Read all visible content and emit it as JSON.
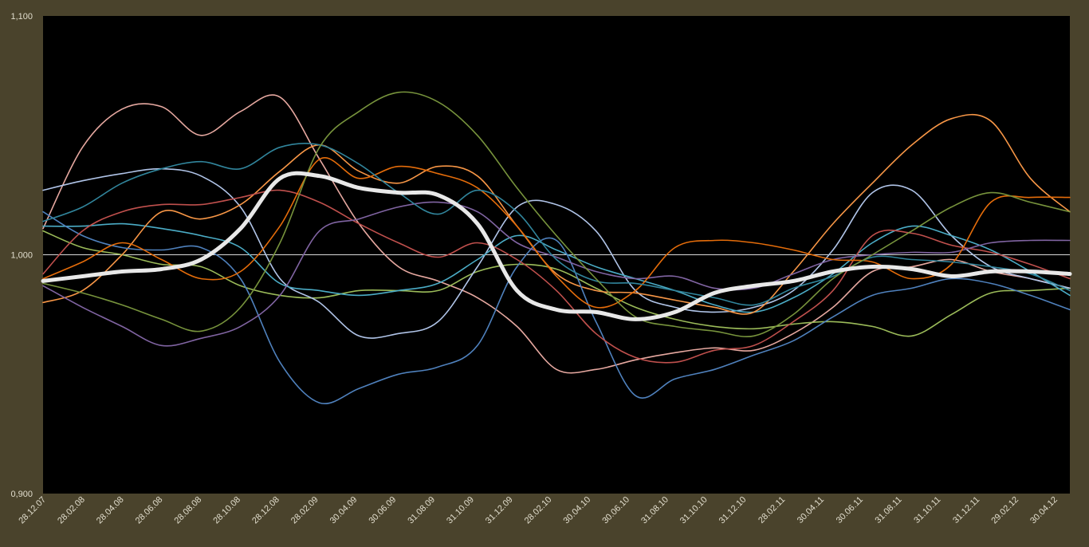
{
  "chart_data": {
    "type": "line",
    "title": "",
    "xlabel": "",
    "ylabel": "",
    "ylim": [
      0.9,
      1.1
    ],
    "yticks": [
      "1,100",
      "1,000",
      "0,900"
    ],
    "ytick_values": [
      1.1,
      1.0,
      0.9
    ],
    "x_start": "28.12.07",
    "x_end": "31.05.12",
    "categories": [
      "28.12.07",
      "28.02.08",
      "28.04.08",
      "28.06.08",
      "28.08.08",
      "28.10.08",
      "28.12.08",
      "28.02.09",
      "30.04.09",
      "30.06.09",
      "31.08.09",
      "31.10.09",
      "31.12.09",
      "28.02.10",
      "30.04.10",
      "30.06.10",
      "31.08.10",
      "31.10.10",
      "31.12.10",
      "28.02.11",
      "30.04.11",
      "30.06.11",
      "31.08.11",
      "31.10.11",
      "31.12.11",
      "29.02.12",
      "30.04.12"
    ],
    "reference_line": 1.0,
    "grid": false,
    "legend": "none",
    "series": [
      {
        "color": "#e8e8e8",
        "highlight": true,
        "values": [
          0.989,
          0.991,
          0.993,
          0.994,
          0.998,
          1.011,
          1.032,
          1.033,
          1.028,
          1.026,
          1.025,
          1.013,
          0.985,
          0.977,
          0.976,
          0.973,
          0.976,
          0.984,
          0.987,
          0.989,
          0.993,
          0.995,
          0.994,
          0.991,
          0.993,
          0.993,
          0.992
        ]
      },
      {
        "color": "#e6a8a0",
        "values": [
          1.011,
          1.045,
          1.061,
          1.062,
          1.05,
          1.06,
          1.066,
          1.04,
          1.013,
          0.995,
          0.989,
          0.982,
          0.97,
          0.952,
          0.952,
          0.956,
          0.959,
          0.961,
          0.96,
          0.967,
          0.978,
          0.993,
          0.995,
          0.998,
          0.993,
          0.99,
          0.986
        ]
      },
      {
        "color": "#9bbb59",
        "values": [
          1.01,
          1.003,
          1.0,
          0.996,
          0.995,
          0.987,
          0.983,
          0.982,
          0.985,
          0.985,
          0.985,
          0.993,
          0.996,
          0.994,
          0.986,
          0.978,
          0.973,
          0.97,
          0.969,
          0.971,
          0.972,
          0.97,
          0.966,
          0.975,
          0.984,
          0.985,
          0.986
        ]
      },
      {
        "color": "#b0c4e8",
        "values": [
          1.027,
          1.031,
          1.034,
          1.036,
          1.033,
          1.02,
          0.99,
          0.98,
          0.966,
          0.967,
          0.972,
          0.995,
          1.02,
          1.021,
          1.01,
          0.985,
          0.978,
          0.976,
          0.978,
          0.985,
          1.002,
          1.026,
          1.027,
          1.008,
          0.995,
          0.99,
          0.986
        ]
      },
      {
        "color": "#4bacc6",
        "values": [
          1.012,
          1.012,
          1.013,
          1.011,
          1.008,
          1.003,
          0.988,
          0.985,
          0.983,
          0.985,
          0.988,
          0.998,
          1.008,
          1.002,
          0.995,
          0.99,
          0.985,
          0.979,
          0.976,
          0.982,
          0.992,
          1.005,
          1.012,
          1.008,
          1.002,
          0.993,
          0.983
        ]
      },
      {
        "color": "#f79646",
        "values": [
          0.98,
          0.985,
          1.0,
          1.018,
          1.015,
          1.021,
          1.035,
          1.046,
          1.035,
          1.03,
          1.037,
          1.033,
          1.012,
          0.992,
          0.985,
          0.984,
          0.981,
          0.978,
          0.976,
          0.993,
          1.013,
          1.03,
          1.046,
          1.057,
          1.056,
          1.032,
          1.018
        ]
      },
      {
        "color": "#4f81bd",
        "values": [
          1.018,
          1.008,
          1.003,
          1.002,
          1.003,
          0.99,
          0.955,
          0.938,
          0.944,
          0.95,
          0.953,
          0.962,
          0.995,
          1.006,
          0.972,
          0.941,
          0.948,
          0.952,
          0.958,
          0.964,
          0.974,
          0.983,
          0.986,
          0.99,
          0.988,
          0.983,
          0.977
        ]
      },
      {
        "color": "#c0504d",
        "values": [
          0.992,
          1.01,
          1.018,
          1.021,
          1.021,
          1.024,
          1.027,
          1.022,
          1.013,
          1.005,
          0.999,
          1.005,
          0.998,
          0.985,
          0.967,
          0.957,
          0.955,
          0.96,
          0.962,
          0.972,
          0.985,
          1.008,
          1.009,
          1.004,
          1.001,
          0.996,
          0.99
        ]
      },
      {
        "color": "#8064a2",
        "values": [
          0.987,
          0.978,
          0.97,
          0.962,
          0.965,
          0.97,
          0.983,
          1.01,
          1.015,
          1.02,
          1.022,
          1.018,
          1.005,
          0.999,
          0.993,
          0.99,
          0.991,
          0.986,
          0.986,
          0.992,
          0.998,
          1.0,
          1.001,
          1.001,
          1.005,
          1.006,
          1.006
        ]
      },
      {
        "color": "#e46c0a",
        "values": [
          0.99,
          0.997,
          1.005,
          0.998,
          0.99,
          0.993,
          1.012,
          1.04,
          1.032,
          1.037,
          1.034,
          1.028,
          1.012,
          0.991,
          0.978,
          0.985,
          1.003,
          1.006,
          1.005,
          1.002,
          0.998,
          0.997,
          0.99,
          0.996,
          1.022,
          1.024,
          1.024
        ]
      },
      {
        "color": "#31859c",
        "values": [
          1.014,
          1.02,
          1.03,
          1.036,
          1.039,
          1.036,
          1.045,
          1.046,
          1.038,
          1.026,
          1.017,
          1.027,
          1.018,
          0.998,
          0.989,
          0.988,
          0.985,
          0.982,
          0.979,
          0.986,
          0.991,
          0.999,
          0.998,
          0.997,
          0.995,
          0.992,
          0.985
        ]
      },
      {
        "color": "#77933c",
        "values": [
          0.988,
          0.984,
          0.979,
          0.973,
          0.968,
          0.978,
          1.005,
          1.045,
          1.06,
          1.068,
          1.064,
          1.05,
          1.028,
          1.008,
          0.99,
          0.974,
          0.97,
          0.968,
          0.966,
          0.975,
          0.99,
          1.0,
          1.01,
          1.02,
          1.026,
          1.022,
          1.018
        ]
      }
    ]
  }
}
